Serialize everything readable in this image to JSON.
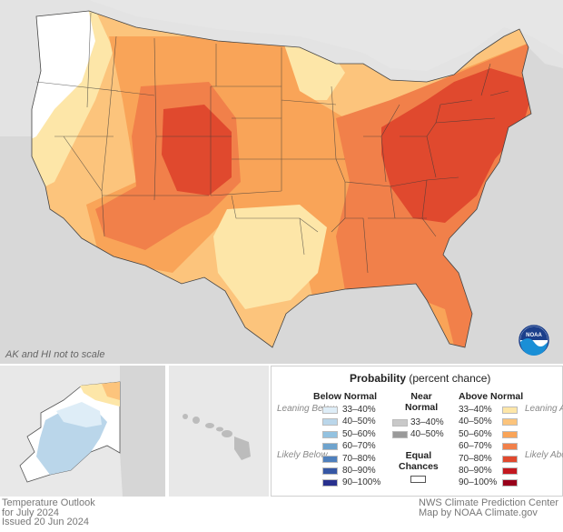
{
  "map": {
    "note": "AK and HI not to scale"
  },
  "legend": {
    "title": "Probability",
    "title_sub": "(percent chance)",
    "below": {
      "header": "Below Normal",
      "top_label": "Leaning Below",
      "bottom_label": "Likely Below",
      "items": [
        {
          "label": "33–40%",
          "color": "#deedf7"
        },
        {
          "label": "40–50%",
          "color": "#bad6ea"
        },
        {
          "label": "50–60%",
          "color": "#93c2e0"
        },
        {
          "label": "60–70%",
          "color": "#6ea3cd"
        },
        {
          "label": "70–80%",
          "color": "#4f80bd"
        },
        {
          "label": "80–90%",
          "color": "#3657a4"
        },
        {
          "label": "90–100%",
          "color": "#28308d"
        }
      ]
    },
    "near": {
      "header_1": "Near",
      "header_2": "Normal",
      "items": [
        {
          "label": "33–40%",
          "color": "#c9c9c9"
        },
        {
          "label": "40–50%",
          "color": "#9a9a9a"
        }
      ]
    },
    "equal": {
      "label_1": "Equal",
      "label_2": "Chances",
      "color": "#ffffff"
    },
    "above": {
      "header": "Above Normal",
      "top_label": "Leaning Above",
      "bottom_label": "Likely Above",
      "items": [
        {
          "label": "33–40%",
          "color": "#fde6a8"
        },
        {
          "label": "40–50%",
          "color": "#fcc47c"
        },
        {
          "label": "50–60%",
          "color": "#f9a458"
        },
        {
          "label": "60–70%",
          "color": "#f1804a"
        },
        {
          "label": "70–80%",
          "color": "#e0492e"
        },
        {
          "label": "80–90%",
          "color": "#c3181f"
        },
        {
          "label": "90–100%",
          "color": "#98001a"
        }
      ]
    }
  },
  "footer": {
    "left_1": "Temperature Outlook",
    "left_2": "for July 2024",
    "left_3": "Issued 20 Jun 2024",
    "right_1": "NWS Climate Prediction Center",
    "right_2": "Map by NOAA Climate.gov"
  },
  "logo": {
    "text": "NOAA"
  }
}
